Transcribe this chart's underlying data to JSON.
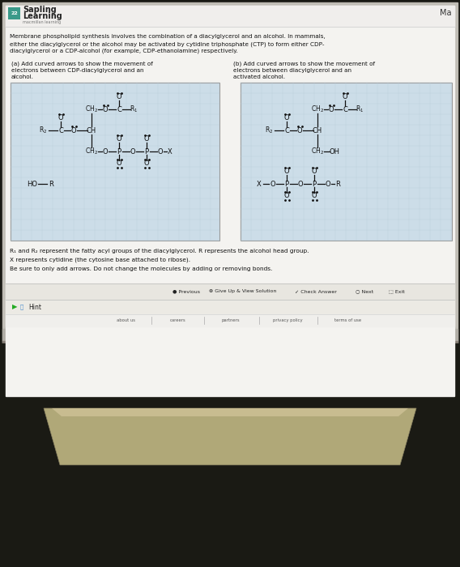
{
  "monitor_bg": "#1a1a14",
  "screen_bg": "#c8c4bc",
  "page_bg": "#f5f5f2",
  "header_bg": "#f0eeec",
  "header_text_bold": "Sapling",
  "header_text_normal": "Learning",
  "header_sub": "macmillan learning",
  "header_right": "Ma",
  "question_text_lines": [
    "Membrane phospholipid synthesis involves the combination of a diacylglycerol and an alcohol. In mammals,",
    "either the diacylglycerol or the alcohol may be activated by cytidine triphosphate (CTP) to form either CDP-",
    "diacylglycerol or a CDP-alcohol (for example, CDP-ethanolamine) respectively."
  ],
  "part_a_label_lines": [
    "(a) Add curved arrows to show the movement of",
    "electrons between CDP-diacylglycerol and an",
    "alcohol."
  ],
  "part_b_label_lines": [
    "(b) Add curved arrows to show the movement of",
    "electrons between diacylglycerol and an",
    "activated alcohol."
  ],
  "footnote1": "R₁ and R₂ represent the fatty acyl groups of the diacylglycerol. R represents the alcohol head group.",
  "footnote2": "X represents cytidine (the cytosine base attached to ribose).",
  "footnote3": "Be sure to only add arrows. Do not change the molecules by adding or removing bonds.",
  "nav_bg": "#e8e6e0",
  "nav_items": [
    {
      "symbol": "●",
      "symbol_color": "#4a9a4a",
      "text": "Previous"
    },
    {
      "symbol": "⊗",
      "symbol_color": "#cc4444",
      "text": "Give Up & View Solution"
    },
    {
      "symbol": "✓",
      "symbol_color": "#4a9a4a",
      "text": "Check Answer"
    },
    {
      "symbol": "○",
      "symbol_color": "#4a9a4a",
      "text": "Next"
    },
    {
      "symbol": "⬚",
      "symbol_color": "#cc4444",
      "text": "Exit"
    }
  ],
  "hint_text": "Hint",
  "footer_links": [
    "about us",
    "careers",
    "partners",
    "privacy policy",
    "terms of use"
  ],
  "grid_color": "#ccdde8",
  "grid_line_color": "#b8ccd8",
  "molecule_color": "#111111",
  "dot_color": "#111111",
  "box_border_color": "#999999",
  "laptop_base_color": "#b0a878",
  "laptop_dark": "#888060"
}
